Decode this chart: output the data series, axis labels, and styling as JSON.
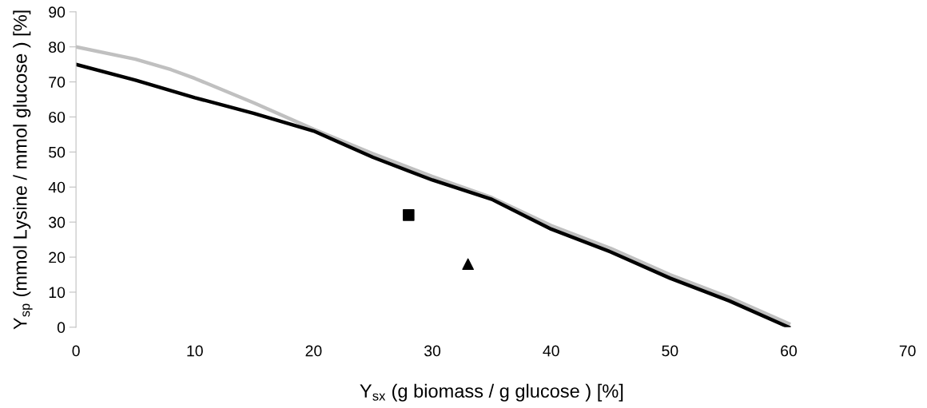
{
  "chart_data": {
    "type": "line",
    "xlabel": "Y$_{sx}$ (g biomass / g glucose ) [%]",
    "ylabel": "Y$_{sp}$ (mmol Lysine / mmol glucose ) [%]",
    "xlim": [
      0,
      70
    ],
    "xticks": [
      0,
      10,
      20,
      30,
      40,
      50,
      60,
      70
    ],
    "ylim": [
      0,
      90
    ],
    "yticks": [
      0,
      10,
      20,
      30,
      40,
      50,
      60,
      70,
      80,
      90
    ],
    "grid": false,
    "legend": false,
    "series": [
      {
        "color": "#c0c0c0",
        "x": [
          0,
          5,
          8,
          10,
          15,
          20,
          25,
          30,
          35,
          40,
          45,
          50,
          55,
          60
        ],
        "values": [
          80,
          76.5,
          73.5,
          71,
          64,
          56.5,
          49.5,
          43,
          37,
          29,
          22.5,
          15,
          8.5,
          1
        ]
      },
      {
        "color": "#000000",
        "x": [
          0,
          5,
          10,
          15,
          20,
          22,
          25,
          30,
          35,
          40,
          45,
          50,
          55,
          60
        ],
        "values": [
          75,
          70.5,
          65.5,
          61,
          56,
          53,
          48.5,
          42,
          36.5,
          28,
          21.5,
          14,
          7.5,
          0
        ]
      },
      {
        "type": "scatter",
        "color": "#000000",
        "marker": "square",
        "x": [
          28
        ],
        "values": [
          32
        ]
      },
      {
        "type": "scatter",
        "color": "#000000",
        "marker": "triangle",
        "x": [
          33
        ],
        "values": [
          18
        ]
      }
    ]
  }
}
